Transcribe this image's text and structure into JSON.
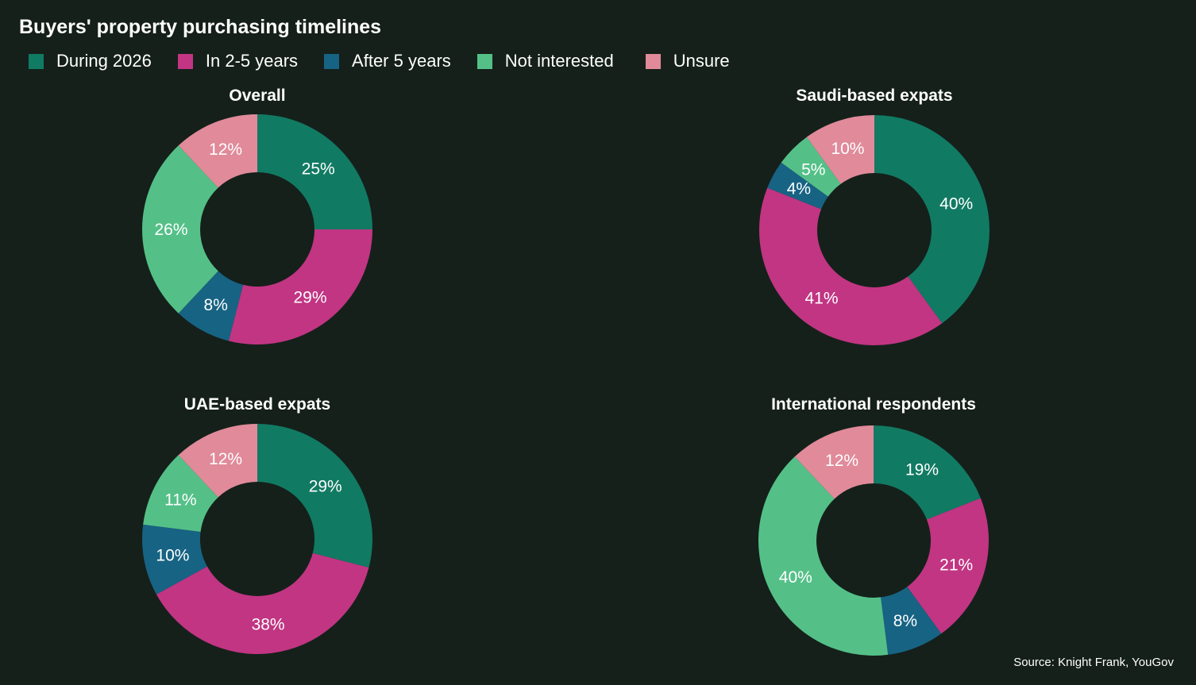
{
  "title": "Buyers' property purchasing timelines",
  "source": "Source: Knight Frank, YouGov",
  "legend": [
    {
      "label": "During 2026",
      "color": "#117a63"
    },
    {
      "label": "In 2-5 years",
      "color": "#c13583"
    },
    {
      "label": "After 5 years",
      "color": "#176383"
    },
    {
      "label": "Not interested",
      "color": "#54c088"
    },
    {
      "label": "Unsure",
      "color": "#e08a9a"
    }
  ],
  "chart_data": [
    {
      "type": "pie",
      "donut": true,
      "title": "Overall",
      "categories": [
        "During 2026",
        "In 2-5 years",
        "After 5 years",
        "Not interested",
        "Unsure"
      ],
      "values": [
        25,
        29,
        8,
        26,
        12
      ],
      "labels": [
        "25%",
        "29%",
        "8%",
        "26%",
        "12%"
      ]
    },
    {
      "type": "pie",
      "donut": true,
      "title": "Saudi-based expats",
      "categories": [
        "During 2026",
        "In 2-5 years",
        "After 5 years",
        "Not interested",
        "Unsure"
      ],
      "values": [
        40,
        41,
        4,
        5,
        10
      ],
      "labels": [
        "40%",
        "41%",
        "4%",
        "5%",
        "10%"
      ]
    },
    {
      "type": "pie",
      "donut": true,
      "title": "UAE-based expats",
      "categories": [
        "During 2026",
        "In 2-5 years",
        "After 5 years",
        "Not interested",
        "Unsure"
      ],
      "values": [
        29,
        38,
        10,
        11,
        12
      ],
      "labels": [
        "29%",
        "38%",
        "10%",
        "11%",
        "12%"
      ]
    },
    {
      "type": "pie",
      "donut": true,
      "title": "International respondents",
      "categories": [
        "During 2026",
        "In 2-5 years",
        "After 5 years",
        "Not interested",
        "Unsure"
      ],
      "values": [
        19,
        21,
        8,
        40,
        12
      ],
      "labels": [
        "19%",
        "21%",
        "8%",
        "40%",
        "12%"
      ]
    }
  ]
}
